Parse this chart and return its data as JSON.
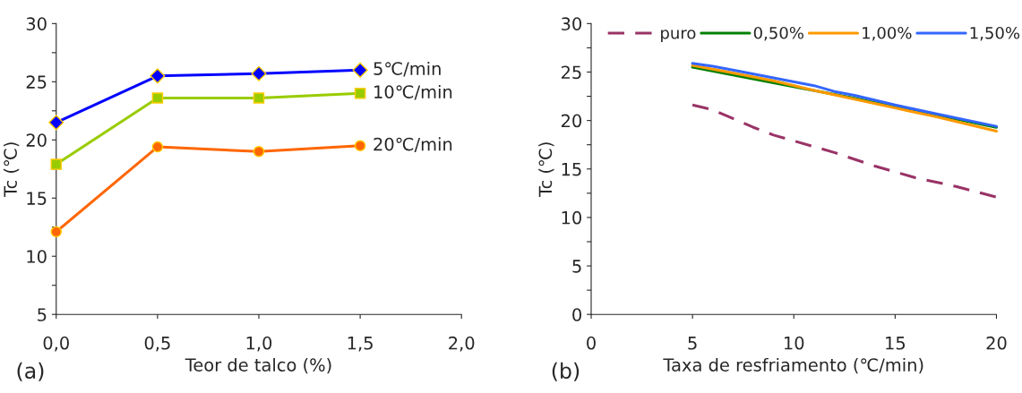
{
  "chart_data": [
    {
      "type": "line",
      "xlabel": "Teor de talco (%)",
      "ylabel": "Tc (℃)",
      "x": [
        0,
        0.5,
        1.0,
        1.5
      ],
      "xlim": [
        0,
        2
      ],
      "xticks": [
        {
          "value": 0,
          "label": "0,0"
        },
        {
          "value": 0.5,
          "label": "0,5"
        },
        {
          "value": 1.0,
          "label": "1,0"
        },
        {
          "value": 1.5,
          "label": "1,5"
        },
        {
          "value": 2.0,
          "label": "2,0"
        }
      ],
      "ylim": [
        5,
        30
      ],
      "yticks": [
        5,
        {
          "value": 7.5,
          "label": null
        },
        10,
        {
          "value": 12.5,
          "label": null
        },
        15,
        {
          "value": 17.5,
          "label": null
        },
        20,
        {
          "value": 22.5,
          "label": null
        },
        25,
        {
          "value": 27.5,
          "label": null
        },
        30
      ],
      "grid": false,
      "legend": false,
      "series": [
        {
          "name": "5℃/min",
          "color": "#0000ff",
          "marker": "diamond",
          "values": [
            21.5,
            25.5,
            25.7,
            26.0
          ]
        },
        {
          "name": "10℃/min",
          "color": "#99cc00",
          "marker": "square",
          "values": [
            17.9,
            23.6,
            23.6,
            24.0
          ]
        },
        {
          "name": "20℃/min",
          "color": "#ff6600",
          "marker": "circle",
          "values": [
            12.1,
            19.4,
            19.0,
            19.5
          ]
        }
      ],
      "annotations": [
        "(a)"
      ]
    },
    {
      "type": "line",
      "xlabel": "Taxa de resfriamento (℃/min)",
      "ylabel": "Tc (℃)",
      "xlim": [
        0,
        20
      ],
      "xticks": [
        0,
        5,
        10,
        15,
        20
      ],
      "ylim": [
        0,
        30
      ],
      "yticks": [
        0,
        {
          "value": 2.5,
          "label": null
        },
        5,
        {
          "value": 7.5,
          "label": null
        },
        10,
        {
          "value": 12.5,
          "label": null
        },
        15,
        {
          "value": 17.5,
          "label": null
        },
        20,
        {
          "value": 22.5,
          "label": null
        },
        25,
        {
          "value": 27.5,
          "label": null
        },
        30
      ],
      "grid": false,
      "legend": "top",
      "series": [
        {
          "name": "puro",
          "color": "#993366",
          "line_style": "dashed",
          "x": [
            5,
            6,
            7,
            8,
            9,
            10,
            12,
            14,
            16,
            18,
            20
          ],
          "values": [
            21.6,
            21.1,
            20.2,
            19.3,
            18.5,
            17.9,
            16.7,
            15.3,
            14.1,
            13.2,
            12.1
          ]
        },
        {
          "name": "0,50%",
          "color": "#008000",
          "x": [
            5,
            7,
            9,
            13,
            15,
            17,
            20
          ],
          "values": [
            25.5,
            24.7,
            23.9,
            22.3,
            21.4,
            20.6,
            19.3
          ]
        },
        {
          "name": "1,00%",
          "color": "#ff9900",
          "x": [
            5,
            7,
            9,
            11,
            13,
            15,
            17,
            20
          ],
          "values": [
            25.7,
            24.9,
            24.1,
            23.1,
            22.2,
            21.3,
            20.4,
            18.9
          ]
        },
        {
          "name": "1,50%",
          "color": "#3366ff",
          "x": [
            5,
            6,
            7,
            9,
            11,
            12,
            13,
            15,
            17,
            20
          ],
          "values": [
            25.9,
            25.6,
            25.2,
            24.4,
            23.6,
            23.0,
            22.6,
            21.6,
            20.7,
            19.4
          ]
        }
      ],
      "annotations": [
        "(b)"
      ]
    }
  ]
}
